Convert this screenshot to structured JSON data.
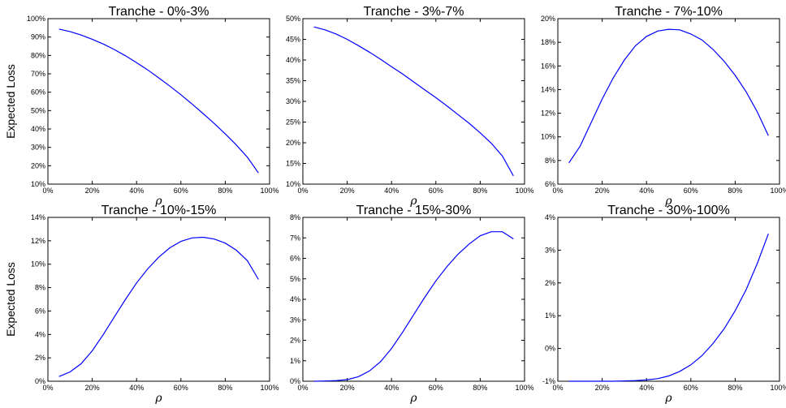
{
  "figure": {
    "ylabel": "Expected Loss",
    "xlabel": "ρ"
  },
  "chart_data": [
    {
      "type": "line",
      "title": "Tranche - 0%-3%",
      "xlabel": "ρ",
      "ylabel": "Expected Loss",
      "xlim": [
        0,
        100
      ],
      "ylim": [
        10,
        100
      ],
      "x_ticks": [
        "0%",
        "20%",
        "40%",
        "60%",
        "80%",
        "100%"
      ],
      "y_ticks": [
        "10%",
        "20%",
        "30%",
        "40%",
        "50%",
        "60%",
        "70%",
        "80%",
        "90%",
        "100%"
      ],
      "grid": false,
      "series": [
        {
          "color": "#0000ff",
          "x": [
            5,
            10,
            15,
            20,
            25,
            30,
            35,
            40,
            45,
            50,
            55,
            60,
            65,
            70,
            75,
            80,
            85,
            90,
            95
          ],
          "y": [
            94.3,
            93.0,
            91.1,
            88.8,
            86.2,
            83.2,
            79.8,
            76.1,
            72.1,
            67.8,
            63.3,
            58.6,
            53.6,
            48.4,
            43.0,
            37.3,
            31.3,
            24.6,
            16.1
          ]
        }
      ]
    },
    {
      "type": "line",
      "title": "Tranche - 3%-7%",
      "xlabel": "ρ",
      "ylabel": "",
      "xlim": [
        0,
        100
      ],
      "ylim": [
        10,
        50
      ],
      "x_ticks": [
        "0%",
        "20%",
        "40%",
        "60%",
        "80%",
        "100%"
      ],
      "y_ticks": [
        "10%",
        "15%",
        "20%",
        "25%",
        "30%",
        "35%",
        "40%",
        "45%",
        "50%"
      ],
      "grid": false,
      "series": [
        {
          "color": "#0000ff",
          "x": [
            5,
            10,
            15,
            20,
            25,
            30,
            35,
            40,
            45,
            50,
            55,
            60,
            65,
            70,
            75,
            80,
            85,
            90,
            95
          ],
          "y": [
            48.0,
            47.3,
            46.3,
            45.0,
            43.5,
            41.9,
            40.2,
            38.4,
            36.6,
            34.7,
            32.8,
            30.9,
            28.9,
            26.8,
            24.7,
            22.4,
            19.9,
            16.8,
            12.0
          ]
        }
      ]
    },
    {
      "type": "line",
      "title": "Tranche - 7%-10%",
      "xlabel": "ρ",
      "ylabel": "",
      "xlim": [
        0,
        100
      ],
      "ylim": [
        6,
        20
      ],
      "x_ticks": [
        "0%",
        "20%",
        "40%",
        "60%",
        "80%",
        "100%"
      ],
      "y_ticks": [
        "6%",
        "8%",
        "10%",
        "12%",
        "14%",
        "16%",
        "18%",
        "20%"
      ],
      "grid": false,
      "series": [
        {
          "color": "#0000ff",
          "x": [
            5,
            10,
            15,
            20,
            25,
            30,
            35,
            40,
            45,
            50,
            55,
            60,
            65,
            70,
            75,
            80,
            85,
            90,
            95
          ],
          "y": [
            7.8,
            9.2,
            11.2,
            13.2,
            15.0,
            16.5,
            17.7,
            18.5,
            18.95,
            19.1,
            19.05,
            18.7,
            18.2,
            17.4,
            16.4,
            15.2,
            13.8,
            12.1,
            10.1
          ]
        }
      ]
    },
    {
      "type": "line",
      "title": "Tranche - 10%-15%",
      "xlabel": "ρ",
      "ylabel": "Expected Loss",
      "xlim": [
        0,
        100
      ],
      "ylim": [
        0,
        14
      ],
      "x_ticks": [
        "0%",
        "20%",
        "40%",
        "60%",
        "80%",
        "100%"
      ],
      "y_ticks": [
        "0%",
        "2%",
        "4%",
        "6%",
        "8%",
        "10%",
        "12%",
        "14%"
      ],
      "grid": false,
      "series": [
        {
          "color": "#0000ff",
          "x": [
            5,
            10,
            15,
            20,
            25,
            30,
            35,
            40,
            45,
            50,
            55,
            60,
            65,
            70,
            75,
            80,
            85,
            90,
            95
          ],
          "y": [
            0.4,
            0.8,
            1.5,
            2.6,
            4.0,
            5.5,
            7.0,
            8.4,
            9.6,
            10.6,
            11.4,
            11.95,
            12.25,
            12.3,
            12.15,
            11.8,
            11.2,
            10.3,
            8.7
          ]
        }
      ]
    },
    {
      "type": "line",
      "title": "Tranche - 15%-30%",
      "xlabel": "ρ",
      "ylabel": "",
      "xlim": [
        0,
        100
      ],
      "ylim": [
        0,
        8
      ],
      "x_ticks": [
        "0%",
        "20%",
        "40%",
        "60%",
        "80%",
        "100%"
      ],
      "y_ticks": [
        "0%",
        "1%",
        "2%",
        "3%",
        "4%",
        "5%",
        "6%",
        "7%",
        "8%"
      ],
      "grid": false,
      "series": [
        {
          "color": "#0000ff",
          "x": [
            5,
            10,
            15,
            20,
            25,
            30,
            35,
            40,
            45,
            50,
            55,
            60,
            65,
            70,
            75,
            80,
            85,
            90,
            95
          ],
          "y": [
            0.0,
            0.01,
            0.03,
            0.08,
            0.22,
            0.5,
            0.95,
            1.6,
            2.4,
            3.25,
            4.1,
            4.9,
            5.6,
            6.2,
            6.7,
            7.1,
            7.3,
            7.3,
            6.95
          ]
        }
      ]
    },
    {
      "type": "line",
      "title": "Tranche - 30%-100%",
      "xlabel": "ρ",
      "ylabel": "",
      "xlim": [
        0,
        100
      ],
      "ylim": [
        -1,
        4
      ],
      "x_ticks": [
        "0%",
        "20%",
        "40%",
        "60%",
        "80%",
        "100%"
      ],
      "y_ticks": [
        "-1%",
        "0%",
        "1%",
        "2%",
        "3%",
        "4%"
      ],
      "grid": false,
      "series": [
        {
          "color": "#0000ff",
          "x": [
            5,
            10,
            15,
            20,
            25,
            30,
            35,
            40,
            45,
            50,
            55,
            60,
            65,
            70,
            75,
            80,
            85,
            90,
            95
          ],
          "y": [
            -1.0,
            -1.0,
            -1.0,
            -1.0,
            -1.0,
            -0.99,
            -0.98,
            -0.96,
            -0.92,
            -0.84,
            -0.7,
            -0.5,
            -0.22,
            0.15,
            0.6,
            1.15,
            1.8,
            2.6,
            3.5
          ]
        }
      ]
    }
  ]
}
